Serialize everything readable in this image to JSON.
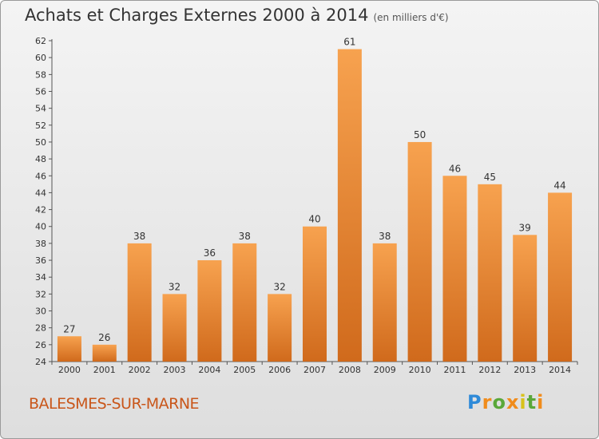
{
  "header": {
    "title": "Achats et Charges Externes 2000 à 2014",
    "unit": "(en milliers d'€)"
  },
  "footer": {
    "city": "BALESMES-SUR-MARNE",
    "logo": "Proxiti"
  },
  "colors": {
    "bar_light": "#f7a24f",
    "bar_dark": "#d06a1c",
    "axis": "#555555",
    "grid": "#cccccc"
  },
  "chart_data": {
    "type": "bar",
    "title": "Achats et Charges Externes 2000 à 2014",
    "subtitle": "(en milliers d'€)",
    "xlabel": "",
    "ylabel": "",
    "categories": [
      "2000",
      "2001",
      "2002",
      "2003",
      "2004",
      "2005",
      "2006",
      "2007",
      "2008",
      "2009",
      "2010",
      "2011",
      "2012",
      "2013",
      "2014"
    ],
    "values": [
      27,
      26,
      38,
      32,
      36,
      38,
      32,
      40,
      61,
      38,
      50,
      46,
      45,
      39,
      44
    ],
    "ylim": [
      24,
      62
    ],
    "yticks": [
      24,
      26,
      28,
      30,
      32,
      34,
      36,
      38,
      40,
      42,
      44,
      46,
      48,
      50,
      52,
      54,
      56,
      58,
      60,
      62
    ],
    "grid": false,
    "legend": "none"
  }
}
